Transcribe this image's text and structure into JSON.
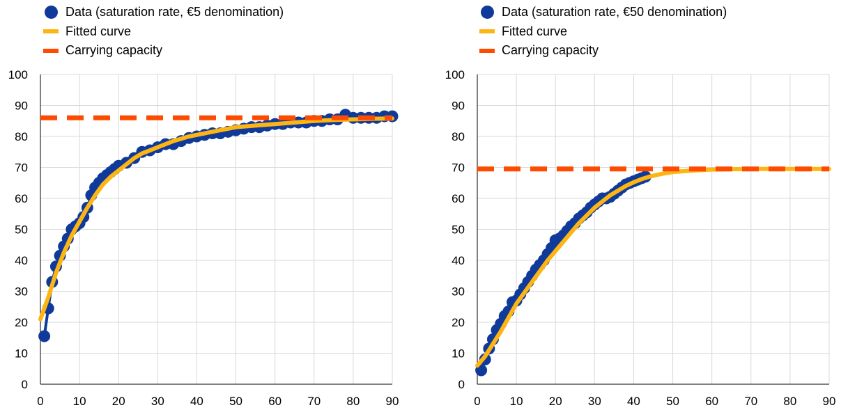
{
  "colors": {
    "data": "#0f3a9a",
    "fit": "#fdb514",
    "capacity": "#ff4b00",
    "grid": "#d9d9d9"
  },
  "chart_data": [
    {
      "type": "scatter",
      "legend": {
        "data": "Data (saturation rate, €5 denomination)",
        "fit": "Fitted curve",
        "capacity": "Carrying capacity"
      },
      "xlim": [
        0,
        90
      ],
      "ylim": [
        0,
        100
      ],
      "xticks": [
        0,
        10,
        20,
        30,
        40,
        50,
        60,
        70,
        80,
        90
      ],
      "yticks": [
        0,
        10,
        20,
        30,
        40,
        50,
        60,
        70,
        80,
        90,
        100
      ],
      "grid": true,
      "carrying_capacity": 86,
      "series": [
        {
          "name": "Data (saturation rate, €5 denomination)",
          "x": [
            1,
            2,
            3,
            4,
            5,
            6,
            7,
            8,
            9,
            10,
            11,
            12,
            13,
            14,
            15,
            16,
            17,
            18,
            19,
            20,
            22,
            24,
            26,
            28,
            30,
            32,
            34,
            36,
            38,
            40,
            42,
            44,
            46,
            48,
            50,
            52,
            54,
            56,
            58,
            60,
            62,
            64,
            66,
            68,
            70,
            72,
            74,
            76,
            78,
            80,
            82,
            84,
            86,
            88,
            90
          ],
          "y": [
            15.5,
            24.5,
            33,
            38,
            41.5,
            44.5,
            47,
            50,
            51,
            52,
            54,
            57,
            61,
            63.5,
            65,
            66.5,
            67.5,
            68.5,
            69.5,
            70.5,
            71.5,
            73,
            75,
            75.5,
            76.5,
            77.5,
            77.5,
            78.5,
            79.5,
            80,
            80.5,
            81,
            81,
            81.5,
            82,
            82.5,
            83,
            83,
            83.5,
            84,
            84,
            84.5,
            84.5,
            84.5,
            85,
            85,
            85.5,
            85.5,
            87,
            86,
            86,
            86,
            86,
            86.5,
            86.5
          ]
        },
        {
          "name": "Fitted curve",
          "x": [
            0,
            2,
            4,
            6,
            8,
            10,
            12,
            14,
            16,
            18,
            20,
            22,
            24,
            26,
            28,
            30,
            34,
            38,
            42,
            46,
            50,
            55,
            60,
            65,
            70,
            75,
            80,
            85,
            90
          ],
          "y": [
            21,
            28,
            36,
            42.5,
            48,
            52.5,
            57,
            61,
            64.5,
            67,
            69,
            71,
            73,
            74.5,
            75.5,
            76.5,
            78.5,
            80,
            81,
            82,
            83,
            83.5,
            84,
            84.5,
            85,
            85.3,
            85.5,
            85.7,
            85.8
          ]
        }
      ]
    },
    {
      "type": "scatter",
      "legend": {
        "data": "Data (saturation rate, €50 denomination)",
        "fit": "Fitted curve",
        "capacity": "Carrying capacity"
      },
      "xlim": [
        0,
        90
      ],
      "ylim": [
        0,
        100
      ],
      "xticks": [
        0,
        10,
        20,
        30,
        40,
        50,
        60,
        70,
        80,
        90
      ],
      "yticks": [
        0,
        10,
        20,
        30,
        40,
        50,
        60,
        70,
        80,
        90,
        100
      ],
      "grid": true,
      "carrying_capacity": 69.5,
      "series": [
        {
          "name": "Data (saturation rate, €50 denomination)",
          "x": [
            1,
            2,
            3,
            4,
            5,
            6,
            7,
            8,
            9,
            10,
            11,
            12,
            13,
            14,
            15,
            16,
            17,
            18,
            19,
            20,
            21,
            22,
            23,
            24,
            25,
            26,
            27,
            28,
            29,
            30,
            31,
            32,
            33,
            34,
            35,
            36,
            37,
            38,
            39,
            40,
            41,
            42,
            43
          ],
          "y": [
            4.5,
            8,
            11.5,
            14.5,
            17.5,
            19.5,
            22,
            23.5,
            26.5,
            27,
            29,
            31,
            33,
            35,
            37,
            38.5,
            40,
            42,
            44,
            46.5,
            47,
            48,
            49.5,
            51,
            52,
            53.5,
            54.5,
            55.5,
            57,
            58,
            59,
            60,
            60,
            60.5,
            61.5,
            62.5,
            63.5,
            64.5,
            65,
            65.5,
            66,
            66.5,
            67
          ]
        },
        {
          "name": "Fitted curve",
          "x": [
            0,
            2,
            4,
            6,
            8,
            10,
            12,
            14,
            16,
            18,
            20,
            22,
            24,
            26,
            28,
            30,
            32,
            34,
            36,
            38,
            40,
            42,
            44,
            46,
            48,
            50,
            55,
            60,
            65,
            70,
            75,
            80,
            85,
            90
          ],
          "y": [
            6,
            9,
            13,
            17,
            21.5,
            26,
            29.5,
            33,
            36.5,
            40,
            43,
            46,
            49,
            52,
            54.5,
            57,
            59,
            61,
            62.5,
            64,
            65.2,
            66.2,
            67,
            67.6,
            68.1,
            68.5,
            69,
            69.3,
            69.4,
            69.5,
            69.5,
            69.5,
            69.5,
            69.5
          ]
        }
      ]
    }
  ]
}
